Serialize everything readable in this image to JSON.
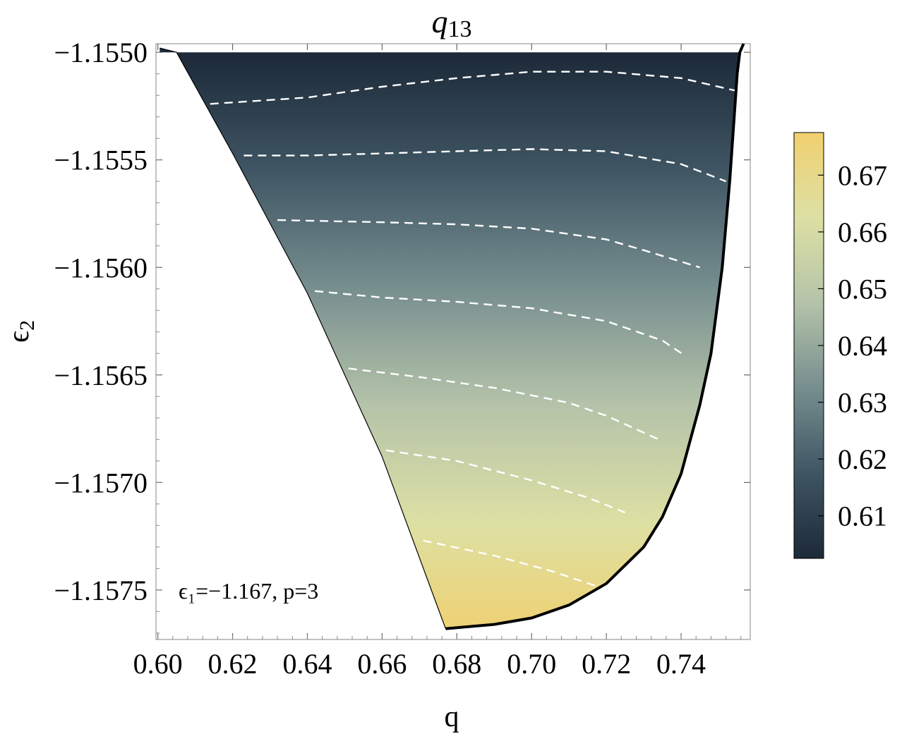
{
  "chart_data": {
    "type": "heatmap",
    "title": "q",
    "title_subscript": "13",
    "xlabel": "q",
    "ylabel": "ϵ",
    "ylabel_subscript": "2",
    "xlim": [
      0.5995,
      0.7585
    ],
    "ylim": [
      -1.15773,
      -1.15496
    ],
    "x_ticks": [
      0.6,
      0.62,
      0.64,
      0.66,
      0.68,
      0.7,
      0.72,
      0.74
    ],
    "x_tick_labels": [
      "0.60",
      "0.62",
      "0.64",
      "0.66",
      "0.68",
      "0.70",
      "0.72",
      "0.74"
    ],
    "y_ticks": [
      -1.155,
      -1.1555,
      -1.156,
      -1.1565,
      -1.157,
      -1.1575
    ],
    "y_tick_labels": [
      "−1.1550",
      "−1.1555",
      "−1.1560",
      "−1.1565",
      "−1.1570",
      "−1.1575"
    ],
    "annotation": "ϵ₁=−1.167, p=3",
    "colorbar": {
      "range": [
        0.6025,
        0.6775
      ],
      "ticks": [
        0.61,
        0.62,
        0.63,
        0.64,
        0.65,
        0.66,
        0.67
      ],
      "tick_labels": [
        "0.61",
        "0.62",
        "0.63",
        "0.64",
        "0.65",
        "0.66",
        "0.67"
      ],
      "colors": [
        "#1c2938",
        "#3f5563",
        "#778e8f",
        "#b4c3a9",
        "#dde0a4",
        "#f0d06f"
      ]
    },
    "region": {
      "left_boundary": [
        [
          0.6005,
          -1.15498
        ],
        [
          0.605,
          -1.155
        ],
        [
          0.62,
          -1.15547
        ],
        [
          0.64,
          -1.15612
        ],
        [
          0.66,
          -1.15688
        ],
        [
          0.677,
          -1.15768
        ]
      ],
      "bottom_boundary": [
        [
          0.677,
          -1.15768
        ],
        [
          0.69,
          -1.15766
        ],
        [
          0.7,
          -1.15763
        ],
        [
          0.71,
          -1.15757
        ],
        [
          0.72,
          -1.15747
        ],
        [
          0.73,
          -1.1573
        ],
        [
          0.735,
          -1.15716
        ],
        [
          0.74,
          -1.15696
        ],
        [
          0.745,
          -1.15664
        ],
        [
          0.748,
          -1.1564
        ],
        [
          0.751,
          -1.156
        ],
        [
          0.753,
          -1.1556
        ],
        [
          0.755,
          -1.1551
        ],
        [
          0.7557,
          -1.155
        ]
      ],
      "top_y": -1.155
    },
    "contours": [
      [
        [
          0.614,
          -1.15524
        ],
        [
          0.64,
          -1.15521
        ],
        [
          0.66,
          -1.15516
        ],
        [
          0.68,
          -1.15512
        ],
        [
          0.7,
          -1.15509
        ],
        [
          0.72,
          -1.15509
        ],
        [
          0.74,
          -1.15512
        ],
        [
          0.755,
          -1.15518
        ]
      ],
      [
        [
          0.623,
          -1.15548
        ],
        [
          0.64,
          -1.15548
        ],
        [
          0.66,
          -1.15547
        ],
        [
          0.68,
          -1.15546
        ],
        [
          0.7,
          -1.15545
        ],
        [
          0.72,
          -1.15546
        ],
        [
          0.74,
          -1.15552
        ],
        [
          0.752,
          -1.1556
        ]
      ],
      [
        [
          0.632,
          -1.15578
        ],
        [
          0.66,
          -1.15579
        ],
        [
          0.68,
          -1.1558
        ],
        [
          0.7,
          -1.15582
        ],
        [
          0.72,
          -1.15587
        ],
        [
          0.73,
          -1.15592
        ],
        [
          0.745,
          -1.156
        ]
      ],
      [
        [
          0.642,
          -1.15611
        ],
        [
          0.66,
          -1.15614
        ],
        [
          0.68,
          -1.15616
        ],
        [
          0.7,
          -1.15619
        ],
        [
          0.72,
          -1.15625
        ],
        [
          0.735,
          -1.15634
        ],
        [
          0.741,
          -1.15641
        ]
      ],
      [
        [
          0.651,
          -1.15647
        ],
        [
          0.67,
          -1.15651
        ],
        [
          0.69,
          -1.15656
        ],
        [
          0.71,
          -1.15663
        ],
        [
          0.72,
          -1.15669
        ],
        [
          0.734,
          -1.1568
        ]
      ],
      [
        [
          0.661,
          -1.15685
        ],
        [
          0.68,
          -1.1569
        ],
        [
          0.7,
          -1.15699
        ],
        [
          0.715,
          -1.15707
        ],
        [
          0.725,
          -1.15714
        ]
      ],
      [
        [
          0.671,
          -1.15727
        ],
        [
          0.69,
          -1.15734
        ],
        [
          0.705,
          -1.15741
        ],
        [
          0.717,
          -1.15748
        ]
      ]
    ]
  }
}
